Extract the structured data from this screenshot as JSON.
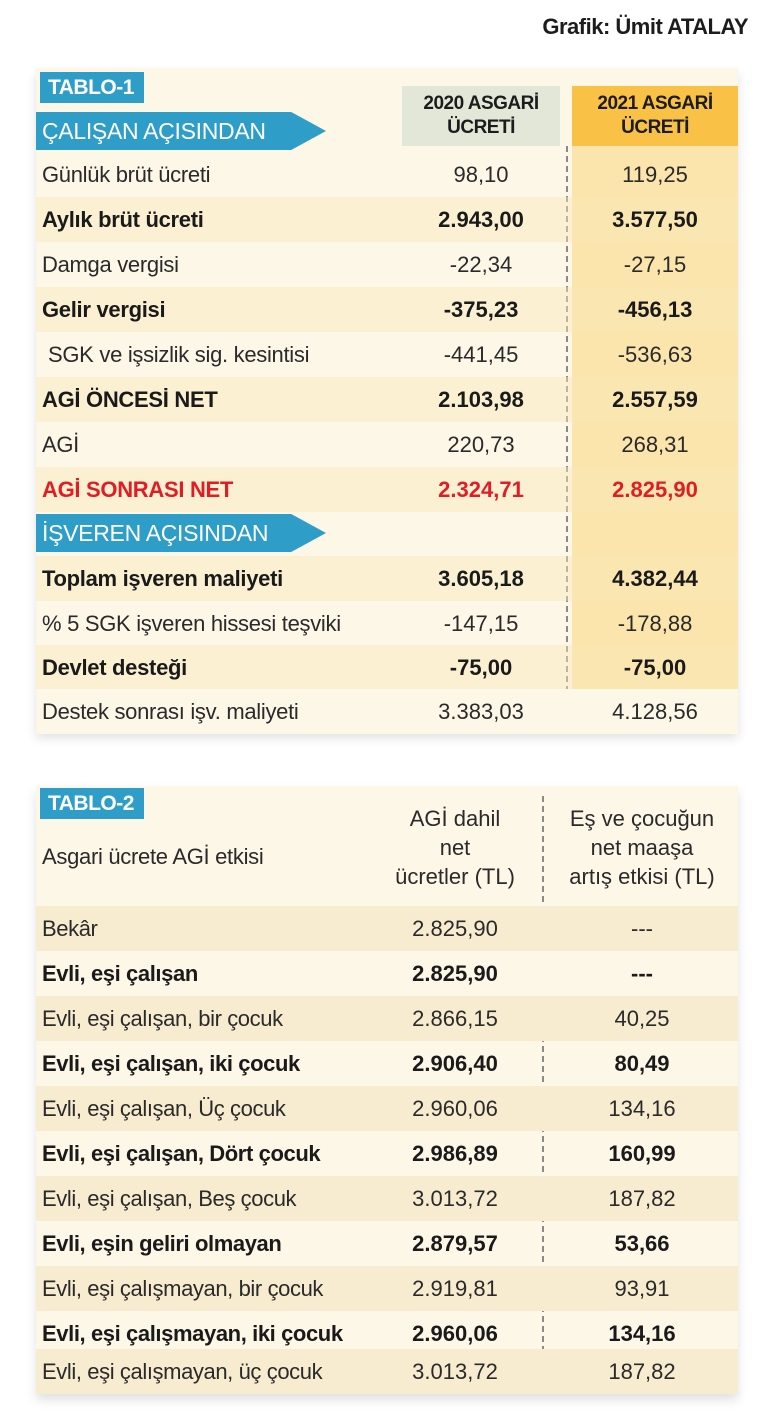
{
  "credit": "Grafik: Ümit ATALAY",
  "table1": {
    "tab": "TABLO-1",
    "section_employee": "ÇALIŞAN AÇISINDAN",
    "section_employer": "İŞVEREN AÇISINDAN",
    "col_2020": "2020 ASGARİ ÜCRETİ",
    "col_2021": "2021 ASGARİ ÜCRETİ",
    "rows": [
      {
        "label": "Günlük brüt ücreti",
        "v2020": "98,10",
        "v2021": "119,25"
      },
      {
        "label": "Aylık brüt ücreti",
        "v2020": "2.943,00",
        "v2021": "3.577,50"
      },
      {
        "label": "Damga vergisi",
        "v2020": "-22,34",
        "v2021": "-27,15"
      },
      {
        "label": "Gelir vergisi",
        "v2020": "-375,23",
        "v2021": "-456,13"
      },
      {
        "label": "SGK ve işsizlik sig. kesintisi",
        "v2020": "-441,45",
        "v2021": "-536,63"
      },
      {
        "label": "AGİ ÖNCESİ NET",
        "v2020": "2.103,98",
        "v2021": "2.557,59"
      },
      {
        "label": "AGİ",
        "v2020": "220,73",
        "v2021": "268,31"
      },
      {
        "label": "AGİ SONRASI NET",
        "v2020": "2.324,71",
        "v2021": "2.825,90"
      },
      {
        "label": "Toplam işveren maliyeti",
        "v2020": "3.605,18",
        "v2021": "4.382,44"
      },
      {
        "label": "% 5 SGK işveren hissesi teşviki",
        "v2020": "-147,15",
        "v2021": "-178,88"
      },
      {
        "label": "Devlet desteği",
        "v2020": "-75,00",
        "v2021": "-75,00"
      },
      {
        "label": "Destek sonrası işv. maliyeti",
        "v2020": "3.383,03",
        "v2021": "4.128,56"
      }
    ]
  },
  "table2": {
    "tab": "TABLO-2",
    "row_header": "Asgari ücrete AGİ etkisi",
    "col1": [
      "AGİ dahil",
      "net",
      "ücretler (TL)"
    ],
    "col2": [
      "Eş ve çocuğun",
      "net maaşa",
      "artış etkisi (TL)"
    ],
    "rows": [
      {
        "label": "Bekâr",
        "v1": "2.825,90",
        "v2": "---"
      },
      {
        "label": "Evli, eşi çalışan",
        "v1": "2.825,90",
        "v2": "---"
      },
      {
        "label": "Evli, eşi çalışan, bir çocuk",
        "v1": "2.866,15",
        "v2": "40,25"
      },
      {
        "label": "Evli, eşi çalışan, iki çocuk",
        "v1": "2.906,40",
        "v2": "80,49"
      },
      {
        "label": "Evli, eşi çalışan, Üç çocuk",
        "v1": "2.960,06",
        "v2": "134,16"
      },
      {
        "label": "Evli, eşi çalışan, Dört çocuk",
        "v1": "2.986,89",
        "v2": "160,99"
      },
      {
        "label": "Evli, eşi çalışan, Beş çocuk",
        "v1": "3.013,72",
        "v2": "187,82"
      },
      {
        "label": "Evli, eşin geliri olmayan",
        "v1": "2.879,57",
        "v2": "53,66"
      },
      {
        "label": "Evli, eşi çalışmayan, bir çocuk",
        "v1": "2.919,81",
        "v2": "93,91"
      },
      {
        "label": "Evli, eşi çalışmayan, iki çocuk",
        "v1": "2.960,06",
        "v2": "134,16"
      },
      {
        "label": "Evli, eşi çalışmayan, üç çocuk",
        "v1": "3.013,72",
        "v2": "187,82"
      }
    ]
  },
  "colors": {
    "accent_blue": "#2e9ec8",
    "highlight_2021": "#f9c247",
    "negative_red": "#e01c24",
    "panel_bg": "#fdf7e8"
  }
}
